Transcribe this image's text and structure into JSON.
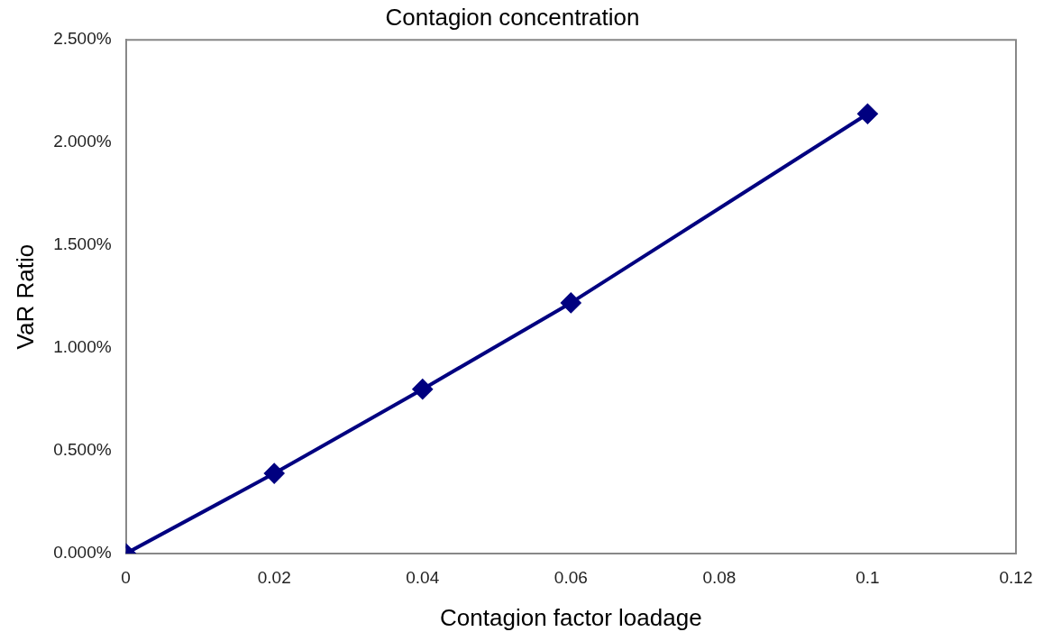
{
  "chart_data": {
    "type": "line",
    "title": "Contagion concentration",
    "xlabel": "Contagion factor loadage",
    "ylabel": "VaR Ratio",
    "x": [
      0,
      0.02,
      0.04,
      0.06,
      0.1
    ],
    "series": [
      {
        "color": "#000080",
        "values": [
          0,
          0.39,
          0.8,
          1.22,
          2.14
        ]
      }
    ],
    "xlim": [
      0,
      0.12
    ],
    "xticks": [
      0,
      0.02,
      0.04,
      0.06,
      0.08,
      0.1,
      0.12
    ],
    "ylim": [
      0,
      2.5
    ],
    "yticks": [
      {
        "value": 0,
        "label": "0.000%"
      },
      {
        "value": 0.5,
        "label": "0.500%"
      },
      {
        "value": 1,
        "label": "1.000%"
      },
      {
        "value": 1.5,
        "label": "1.500%"
      },
      {
        "value": 2,
        "label": "2.000%"
      },
      {
        "value": 2.5,
        "label": "2.500%"
      }
    ],
    "grid": false,
    "legend": false,
    "marker": "diamond",
    "line_style": "solid"
  }
}
